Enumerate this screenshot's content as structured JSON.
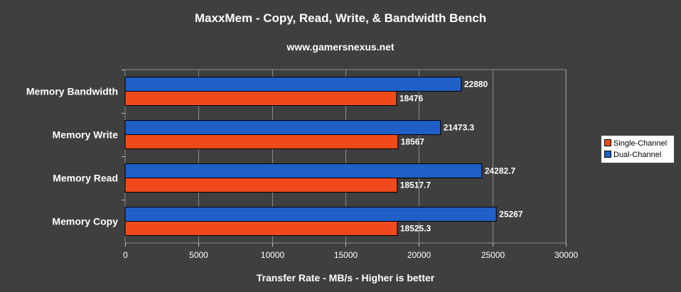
{
  "chart_data": {
    "type": "bar",
    "orientation": "horizontal",
    "title": "MaxxMem - Copy, Read, Write, & Bandwidth Bench",
    "subtitle": "www.gamersnexus.net",
    "xlabel": "Transfer Rate - MB/s - Higher is better",
    "ylabel": "",
    "xlim": [
      0,
      30000
    ],
    "x_ticks": [
      "0",
      "5000",
      "10000",
      "15000",
      "20000",
      "25000",
      "30000"
    ],
    "categories": [
      "Memory Bandwidth",
      "Memory Write",
      "Memory Read",
      "Memory Copy"
    ],
    "series": [
      {
        "name": "Dual-Channel",
        "color": "#1f5fc6",
        "values": [
          22880,
          21473.3,
          24282.7,
          25267
        ],
        "labels": [
          "22880",
          "21473.3",
          "24282.7",
          "25267"
        ]
      },
      {
        "name": "Single-Channel",
        "color": "#f04a1c",
        "values": [
          18476,
          18567,
          18517.7,
          18525.3
        ],
        "labels": [
          "18476",
          "18567",
          "18517.7",
          "18525.3"
        ]
      }
    ],
    "grid": "vertical",
    "legend_position": "right"
  },
  "legend": [
    {
      "label": "Single-Channel",
      "color": "#f04a1c"
    },
    {
      "label": "Dual-Channel",
      "color": "#1f5fc6"
    }
  ]
}
